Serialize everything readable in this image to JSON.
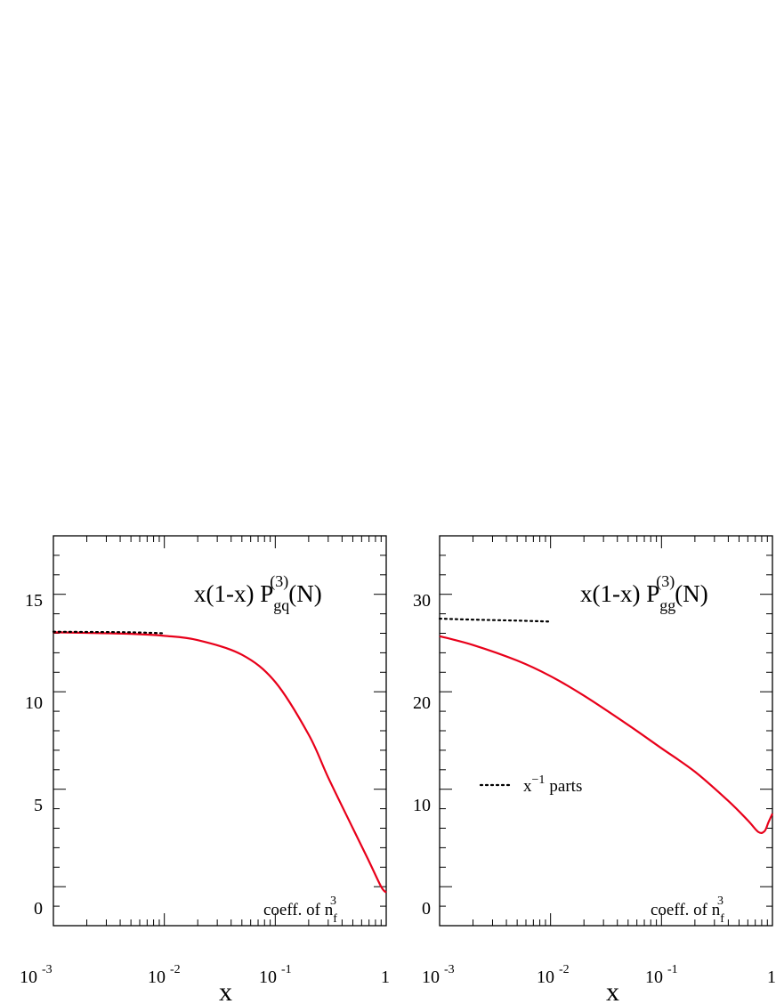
{
  "chart_data": [
    {
      "type": "line",
      "panel": "left",
      "title": {
        "prefix": "x(1-x) P",
        "sub": "gq",
        "sup": "(3)",
        "suffix": "(N)"
      },
      "annotation": {
        "text": "coeff. of n",
        "sub": "f",
        "sup": "3"
      },
      "xlabel": "x",
      "xscale": "log",
      "xlim": [
        0.001,
        1
      ],
      "ylim": [
        -2,
        18
      ],
      "x_ticks": [
        {
          "base": "10",
          "exp": "-3"
        },
        {
          "base": "10",
          "exp": "-2"
        },
        {
          "base": "10",
          "exp": "-1"
        },
        {
          "base": "1",
          "exp": ""
        }
      ],
      "y_ticks": [
        "0",
        "5",
        "10",
        "15"
      ],
      "y_tick_values": [
        0,
        5,
        10,
        15
      ],
      "y_minor_step": 1,
      "series": [
        {
          "style": "solid",
          "color": "#e8001a",
          "x": [
            0.001,
            0.002,
            0.005,
            0.01,
            0.02,
            0.05,
            0.1,
            0.2,
            0.3,
            0.5,
            0.7,
            0.9,
            1.0
          ],
          "y": [
            13.05,
            13.02,
            12.97,
            12.87,
            12.65,
            11.9,
            10.5,
            7.8,
            5.6,
            3.0,
            1.3,
            0.0,
            -0.3
          ]
        },
        {
          "style": "dotted",
          "color": "#000000",
          "x": [
            0.001,
            0.002,
            0.005,
            0.01
          ],
          "y": [
            13.08,
            13.07,
            13.05,
            13.0
          ]
        }
      ]
    },
    {
      "type": "line",
      "panel": "right",
      "title": {
        "prefix": "x(1-x) P",
        "sub": "gg",
        "sup": "(3)",
        "suffix": "(N)"
      },
      "annotation": {
        "text": "coeff. of n",
        "sub": "f",
        "sup": "3"
      },
      "legend": {
        "label": "parts",
        "var": "x",
        "sup": "−1"
      },
      "xlabel": "x",
      "xscale": "log",
      "xlim": [
        0.001,
        1
      ],
      "ylim": [
        -4,
        36
      ],
      "x_ticks": [
        {
          "base": "10",
          "exp": "-3"
        },
        {
          "base": "10",
          "exp": "-2"
        },
        {
          "base": "10",
          "exp": "-1"
        },
        {
          "base": "1",
          "exp": ""
        }
      ],
      "y_ticks": [
        "0",
        "10",
        "20",
        "30"
      ],
      "y_tick_values": [
        0,
        10,
        20,
        30
      ],
      "y_minor_step": 2,
      "series": [
        {
          "style": "solid",
          "color": "#e8001a",
          "x": [
            0.001,
            0.002,
            0.005,
            0.01,
            0.02,
            0.05,
            0.1,
            0.2,
            0.4,
            0.6,
            0.75,
            0.85,
            0.92,
            1.0
          ],
          "y": [
            25.7,
            24.8,
            23.2,
            21.6,
            19.6,
            16.6,
            14.2,
            11.8,
            8.8,
            6.8,
            5.6,
            5.7,
            6.6,
            7.5
          ]
        },
        {
          "style": "dotted",
          "color": "#000000",
          "x": [
            0.001,
            0.002,
            0.005,
            0.01
          ],
          "y": [
            27.5,
            27.4,
            27.3,
            27.2
          ]
        }
      ]
    }
  ]
}
